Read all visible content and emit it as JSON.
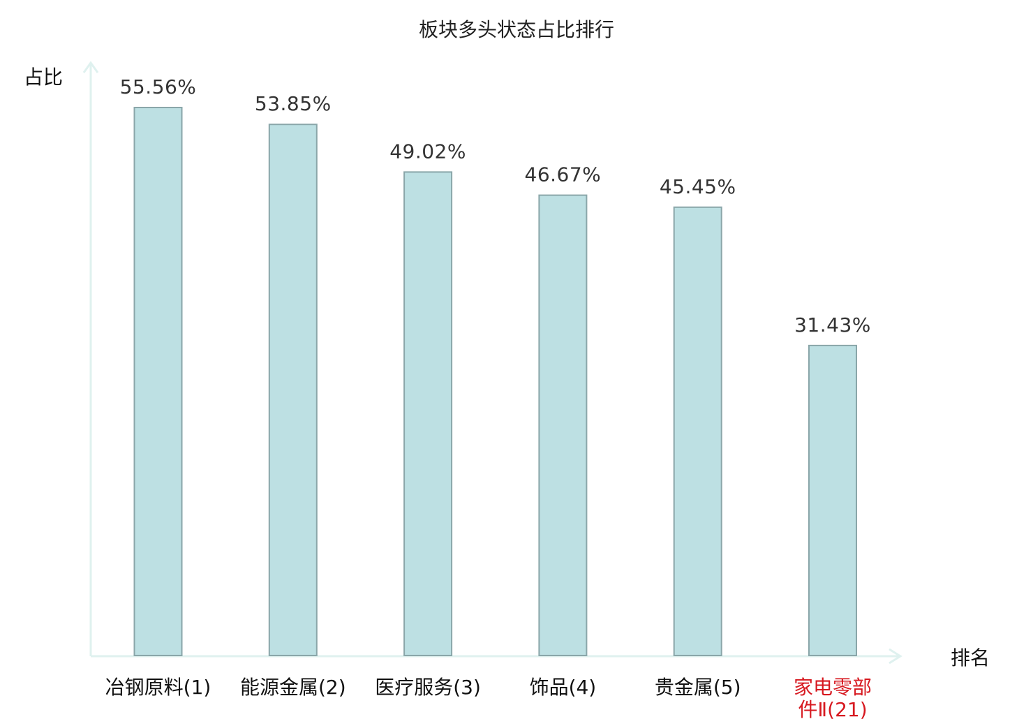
{
  "chart_data": {
    "type": "bar",
    "title": "板块多头状态占比排行",
    "ylabel": "占比",
    "xlabel": "排名",
    "categories": [
      [
        "冶钢原料(1)"
      ],
      [
        "能源金属(2)"
      ],
      [
        "医疗服务(3)"
      ],
      [
        "饰品(4)"
      ],
      [
        "贵金属(5)"
      ],
      [
        "家电零部",
        "件Ⅱ(21)"
      ]
    ],
    "values": [
      55.56,
      53.85,
      49.02,
      46.67,
      45.45,
      31.43
    ],
    "value_labels": [
      "55.56%",
      "53.85%",
      "49.02%",
      "46.67%",
      "45.45%",
      "31.43%"
    ],
    "highlight_index": 5,
    "ylim": [
      0,
      60
    ],
    "grid": false,
    "colors": {
      "bar_fill": "#bde0e3",
      "bar_stroke": "#8aa6a9",
      "axis": "#dff1ef",
      "highlight_text": "#d71920"
    }
  }
}
